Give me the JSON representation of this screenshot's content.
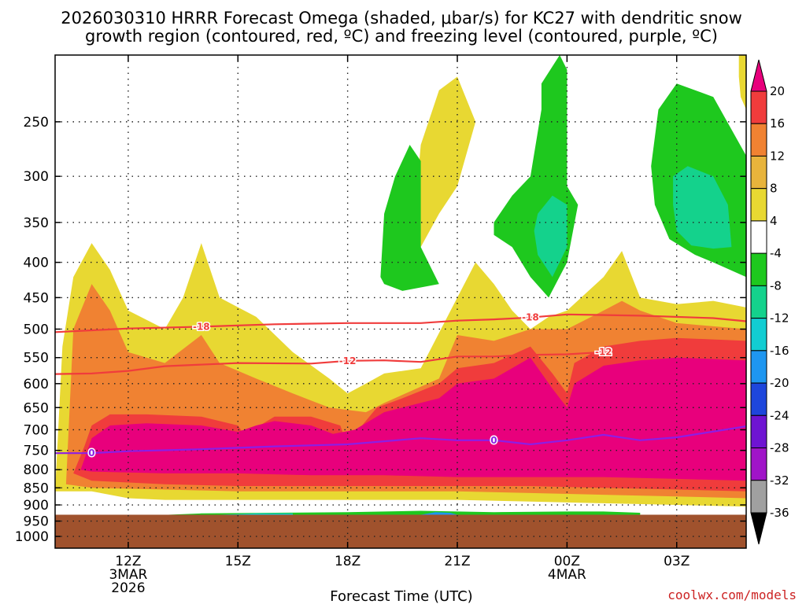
{
  "chart_data": {
    "type": "heatmap",
    "title_line1": "2026030310 HRRR Forecast Omega (shaded, μbar/s) for KC27 with dendritic snow",
    "title_line2": "growth region (contoured, red, ºC) and freezing level (contoured, purple, ºC)",
    "xlabel": "Forecast Time (UTC)",
    "ylabel": "",
    "credit": "coolwx.com/models",
    "x_ticks": [
      {
        "label": "12Z",
        "sub1": "3MAR",
        "sub2": "2026",
        "hour": 12
      },
      {
        "label": "15Z",
        "sub1": "",
        "sub2": "",
        "hour": 15
      },
      {
        "label": "18Z",
        "sub1": "",
        "sub2": "",
        "hour": 18
      },
      {
        "label": "21Z",
        "sub1": "",
        "sub2": "",
        "hour": 21
      },
      {
        "label": "00Z",
        "sub1": "4MAR",
        "sub2": "",
        "hour": 24
      },
      {
        "label": "03Z",
        "sub1": "",
        "sub2": "",
        "hour": 27
      }
    ],
    "xlim_hours": [
      10,
      28.9
    ],
    "y_ticks": [
      250,
      300,
      350,
      400,
      450,
      500,
      550,
      600,
      650,
      700,
      750,
      800,
      850,
      900,
      950,
      1000
    ],
    "ylim_hpa": [
      200,
      1040
    ],
    "y_scale": "log",
    "grid": true,
    "ground_level_hpa": 930,
    "colorbar": {
      "labels": [
        "20",
        "16",
        "12",
        "8",
        "4",
        "-4",
        "-8",
        "-12",
        "-16",
        "-20",
        "-24",
        "-28",
        "-32",
        "-36"
      ],
      "colors": [
        "#e8007c",
        "#f03c3c",
        "#f08232",
        "#e8b43c",
        "#e8d832",
        "#ffffff",
        "#1ec81e",
        "#14d28c",
        "#12cdd2",
        "#1e96f0",
        "#1e46dc",
        "#6e14d2",
        "#a014c8",
        "#a0a0a0",
        "#000000"
      ]
    },
    "colors": {
      "pink": "#e8007c",
      "red": "#f03c3c",
      "orange": "#f08232",
      "gold": "#e8b43c",
      "yellow": "#e8d832",
      "green": "#1ec81e",
      "teal": "#14d28c",
      "cyan": "#12cdd2",
      "blue": "#1e96f0",
      "ground": "#a0522d",
      "contour_red": "#f03c3c",
      "contour_purple": "#8c1ee6"
    },
    "contours": [
      {
        "label": "-18",
        "color": "contour_red",
        "points": [
          [
            10,
            505
          ],
          [
            11,
            502
          ],
          [
            12,
            499
          ],
          [
            14,
            496
          ],
          [
            16,
            492
          ],
          [
            18,
            490
          ],
          [
            20,
            490
          ],
          [
            21,
            486
          ],
          [
            22,
            484
          ],
          [
            23,
            481
          ],
          [
            24,
            476
          ],
          [
            26,
            478
          ],
          [
            28,
            482
          ],
          [
            28.9,
            487
          ]
        ],
        "label_at": [
          [
            14,
            496
          ],
          [
            23,
            481
          ]
        ]
      },
      {
        "label": "-12",
        "color": "contour_red",
        "points": [
          [
            10,
            581
          ],
          [
            11,
            580
          ],
          [
            12,
            575
          ],
          [
            13,
            566
          ],
          [
            15,
            560
          ],
          [
            17,
            561
          ],
          [
            18,
            556
          ],
          [
            19,
            555
          ],
          [
            20,
            558
          ],
          [
            21,
            548
          ],
          [
            22,
            548
          ],
          [
            23,
            545
          ],
          [
            24,
            544
          ],
          [
            25,
            540
          ],
          [
            26,
            538
          ],
          [
            27,
            537
          ],
          [
            28.9,
            539
          ]
        ],
        "label_at": [
          [
            18,
            556
          ],
          [
            25,
            540
          ]
        ]
      },
      {
        "label": "0",
        "color": "contour_purple",
        "points": [
          [
            10,
            757
          ],
          [
            11,
            757
          ],
          [
            12,
            752
          ],
          [
            14,
            747
          ],
          [
            16,
            740
          ],
          [
            18,
            735
          ],
          [
            20,
            720
          ],
          [
            21,
            725
          ],
          [
            22,
            725
          ],
          [
            23,
            735
          ],
          [
            24,
            725
          ],
          [
            25,
            712
          ],
          [
            26,
            725
          ],
          [
            27,
            718
          ],
          [
            28.9,
            692
          ]
        ],
        "label_at": [
          [
            11,
            757
          ],
          [
            22,
            725
          ]
        ]
      }
    ],
    "regions": [
      {
        "color": "yellow",
        "points": [
          [
            10,
            860
          ],
          [
            10.2,
            530
          ],
          [
            10.5,
            420
          ],
          [
            11,
            375
          ],
          [
            11.5,
            410
          ],
          [
            12,
            470
          ],
          [
            13,
            500
          ],
          [
            13.5,
            450
          ],
          [
            14,
            375
          ],
          [
            14.5,
            450
          ],
          [
            15.5,
            480
          ],
          [
            16.5,
            540
          ],
          [
            17.5,
            590
          ],
          [
            18,
            620
          ],
          [
            18.5,
            600
          ],
          [
            19,
            580
          ],
          [
            20,
            570
          ],
          [
            21,
            450
          ],
          [
            21.5,
            400
          ],
          [
            22,
            430
          ],
          [
            22.5,
            470
          ],
          [
            23,
            500
          ],
          [
            23.5,
            480
          ],
          [
            24,
            470
          ],
          [
            25,
            420
          ],
          [
            25.5,
            385
          ],
          [
            26,
            450
          ],
          [
            27,
            460
          ],
          [
            28,
            455
          ],
          [
            28.9,
            465
          ],
          [
            28.9,
            905
          ],
          [
            27,
            900
          ],
          [
            25,
            895
          ],
          [
            23,
            890
          ],
          [
            21,
            885
          ],
          [
            19,
            885
          ],
          [
            17,
            885
          ],
          [
            15,
            885
          ],
          [
            13,
            885
          ],
          [
            12,
            880
          ],
          [
            11,
            860
          ]
        ]
      },
      {
        "color": "yellow",
        "points": [
          [
            19.8,
            380
          ],
          [
            19.9,
            310
          ],
          [
            20,
            270
          ],
          [
            20.5,
            225
          ],
          [
            21,
            215
          ],
          [
            21.5,
            250
          ],
          [
            21,
            310
          ],
          [
            20.5,
            340
          ],
          [
            20,
            380
          ]
        ]
      },
      {
        "color": "yellow",
        "points": [
          [
            28.7,
            200
          ],
          [
            28.8,
            200
          ],
          [
            28.9,
            200
          ],
          [
            28.9,
            240
          ],
          [
            28.75,
            230
          ],
          [
            28.7,
            215
          ]
        ]
      },
      {
        "color": "orange",
        "points": [
          [
            10.3,
            840
          ],
          [
            10.5,
            500
          ],
          [
            11,
            430
          ],
          [
            11.5,
            470
          ],
          [
            12,
            540
          ],
          [
            13,
            560
          ],
          [
            14,
            510
          ],
          [
            14.5,
            560
          ],
          [
            15.5,
            590
          ],
          [
            16.5,
            620
          ],
          [
            17.5,
            650
          ],
          [
            18.5,
            660
          ],
          [
            19,
            640
          ],
          [
            20.5,
            590
          ],
          [
            21,
            510
          ],
          [
            22,
            520
          ],
          [
            23,
            500
          ],
          [
            24,
            500
          ],
          [
            25,
            470
          ],
          [
            25.5,
            455
          ],
          [
            26,
            470
          ],
          [
            27,
            490
          ],
          [
            28.9,
            500
          ],
          [
            28.9,
            880
          ],
          [
            27,
            875
          ],
          [
            25,
            870
          ],
          [
            23,
            865
          ],
          [
            21,
            860
          ],
          [
            19,
            860
          ],
          [
            17,
            860
          ],
          [
            15,
            860
          ],
          [
            13,
            855
          ],
          [
            11,
            850
          ]
        ]
      },
      {
        "color": "red",
        "points": [
          [
            10.5,
            810
          ],
          [
            10.8,
            740
          ],
          [
            11,
            690
          ],
          [
            11.5,
            665
          ],
          [
            12.5,
            665
          ],
          [
            14,
            670
          ],
          [
            15,
            690
          ],
          [
            15.2,
            715
          ],
          [
            15.6,
            690
          ],
          [
            16,
            670
          ],
          [
            17,
            670
          ],
          [
            17.8,
            690
          ],
          [
            18,
            740
          ],
          [
            18.3,
            700
          ],
          [
            18.8,
            650
          ],
          [
            19.5,
            630
          ],
          [
            20.5,
            600
          ],
          [
            21,
            570
          ],
          [
            22,
            560
          ],
          [
            23,
            530
          ],
          [
            23.6,
            580
          ],
          [
            24,
            620
          ],
          [
            24.2,
            560
          ],
          [
            25,
            530
          ],
          [
            26,
            520
          ],
          [
            27,
            515
          ],
          [
            28.9,
            520
          ],
          [
            28.9,
            860
          ],
          [
            27,
            855
          ],
          [
            25,
            850
          ],
          [
            23,
            845
          ],
          [
            21,
            845
          ],
          [
            19,
            845
          ],
          [
            17,
            845
          ],
          [
            15,
            845
          ],
          [
            13,
            840
          ],
          [
            11,
            830
          ]
        ]
      },
      {
        "color": "pink",
        "points": [
          [
            10.7,
            800
          ],
          [
            11,
            720
          ],
          [
            11.5,
            690
          ],
          [
            12.5,
            685
          ],
          [
            14,
            690
          ],
          [
            15,
            705
          ],
          [
            15.5,
            690
          ],
          [
            16,
            680
          ],
          [
            17,
            690
          ],
          [
            17.6,
            710
          ],
          [
            18.2,
            700
          ],
          [
            19,
            660
          ],
          [
            20.5,
            630
          ],
          [
            21,
            600
          ],
          [
            22,
            590
          ],
          [
            23,
            550
          ],
          [
            23.6,
            610
          ],
          [
            24,
            650
          ],
          [
            24.2,
            600
          ],
          [
            25,
            565
          ],
          [
            26,
            555
          ],
          [
            27,
            550
          ],
          [
            28.9,
            555
          ],
          [
            28.9,
            830
          ],
          [
            27,
            825
          ],
          [
            25,
            820
          ],
          [
            23,
            820
          ],
          [
            21,
            820
          ],
          [
            19,
            815
          ],
          [
            17,
            815
          ],
          [
            15,
            810
          ],
          [
            13,
            810
          ],
          [
            11,
            805
          ]
        ]
      },
      {
        "color": "green",
        "points": [
          [
            18.9,
            420
          ],
          [
            19,
            340
          ],
          [
            19.3,
            300
          ],
          [
            19.7,
            270
          ],
          [
            20,
            285
          ],
          [
            20,
            380
          ],
          [
            20.5,
            430
          ],
          [
            19.5,
            440
          ],
          [
            19,
            430
          ]
        ]
      },
      {
        "color": "green",
        "points": [
          [
            22,
            350
          ],
          [
            22.5,
            320
          ],
          [
            23,
            300
          ],
          [
            23.3,
            240
          ],
          [
            23.3,
            220
          ],
          [
            23.8,
            200
          ],
          [
            24,
            210
          ],
          [
            24,
            310
          ],
          [
            24.3,
            330
          ],
          [
            24,
            400
          ],
          [
            23.5,
            450
          ],
          [
            23,
            420
          ],
          [
            22.5,
            380
          ],
          [
            22,
            365
          ]
        ]
      },
      {
        "color": "green",
        "points": [
          [
            26.3,
            290
          ],
          [
            26.5,
            240
          ],
          [
            27,
            220
          ],
          [
            28,
            230
          ],
          [
            28.9,
            280
          ],
          [
            28.9,
            420
          ],
          [
            28,
            400
          ],
          [
            27.5,
            390
          ],
          [
            26.8,
            370
          ],
          [
            26.4,
            330
          ]
        ]
      },
      {
        "color": "teal",
        "points": [
          [
            23.1,
            360
          ],
          [
            23.2,
            340
          ],
          [
            23.6,
            320
          ],
          [
            24,
            330
          ],
          [
            24,
            380
          ],
          [
            23.6,
            420
          ],
          [
            23.2,
            390
          ]
        ]
      },
      {
        "color": "teal",
        "points": [
          [
            26.9,
            300
          ],
          [
            27.3,
            290
          ],
          [
            28,
            300
          ],
          [
            28.4,
            330
          ],
          [
            28.5,
            380
          ],
          [
            28,
            382
          ],
          [
            27.4,
            378
          ],
          [
            27,
            360
          ],
          [
            26.9,
            330
          ]
        ]
      },
      {
        "color": "green",
        "points": [
          [
            12,
            935
          ],
          [
            14,
            926
          ],
          [
            16,
            924
          ],
          [
            18,
            922
          ],
          [
            20,
            918
          ],
          [
            22,
            922
          ],
          [
            24,
            920
          ],
          [
            25,
            920
          ],
          [
            26,
            924
          ],
          [
            26,
            930
          ],
          [
            12,
            930
          ]
        ]
      },
      {
        "color": "cyan",
        "points": [
          [
            14.5,
            930
          ],
          [
            15.5,
            926
          ],
          [
            16.5,
            926
          ],
          [
            16.5,
            930
          ]
        ]
      },
      {
        "color": "blue",
        "points": [
          [
            20,
            930
          ],
          [
            20.4,
            922
          ],
          [
            20.8,
            924
          ],
          [
            21,
            930
          ]
        ]
      }
    ]
  }
}
